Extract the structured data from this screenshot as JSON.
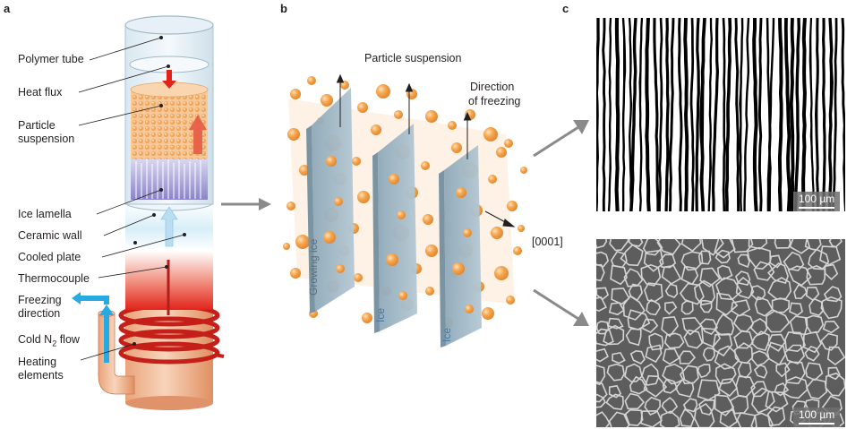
{
  "panels": {
    "a": "a",
    "b": "b",
    "c": "c"
  },
  "panel_a": {
    "labels": {
      "polymer_tube": "Polymer tube",
      "heat_flux": "Heat flux",
      "particle_suspension_1": "Particle",
      "particle_suspension_2": "suspension",
      "ice_lamella": "Ice lamella",
      "ceramic_wall": "Ceramic wall",
      "cooled_plate": "Cooled plate",
      "thermocouple": "Thermocouple",
      "freezing_direction_1": "Freezing",
      "freezing_direction_2": "direction",
      "cold_n2_flow_pre": "Cold N",
      "cold_n2_flow_sub": "2",
      "cold_n2_flow_post": " flow",
      "heating_elements_1": "Heating",
      "heating_elements_2": "elements"
    }
  },
  "panel_b": {
    "labels": {
      "particle_suspension": "Particle suspension",
      "direction_of_freezing_1": "Direction",
      "direction_of_freezing_2": "of freezing",
      "growing_ice": "Growing ice",
      "ice_1": "Ice",
      "ice_2": "Ice",
      "crystal_axis": "[0001]"
    }
  },
  "panel_c": {
    "top_scale": "100 µm",
    "bottom_scale": "100 µm"
  },
  "colors": {
    "particle": "#f4a04a",
    "ice": "#9fb6c4",
    "heater_red": "#e2231a",
    "cold_blue": "#27a9e1",
    "copper": "#e8a87c"
  }
}
